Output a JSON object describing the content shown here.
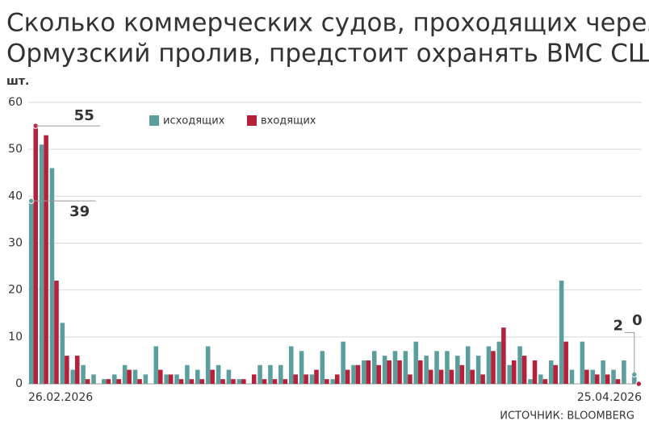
{
  "chart_data": {
    "type": "bar",
    "title": [
      "Сколько коммерческих судов, проходящих через",
      "Ормузский пролив, предстоит охранять ВМС США"
    ],
    "ylabel": "шт.",
    "source": "ИСТОЧНИК: BLOOMBERG",
    "categories": [
      "26.02.2026",
      null,
      null,
      null,
      null,
      null,
      null,
      null,
      null,
      null,
      null,
      null,
      null,
      null,
      null,
      null,
      null,
      null,
      null,
      null,
      null,
      null,
      null,
      null,
      null,
      null,
      null,
      null,
      null,
      null,
      null,
      null,
      null,
      null,
      null,
      null,
      null,
      null,
      null,
      null,
      null,
      null,
      null,
      null,
      null,
      null,
      null,
      null,
      null,
      null,
      null,
      null,
      null,
      null,
      null,
      null,
      null,
      null,
      "25.04.2026"
    ],
    "series": [
      {
        "name": "исходящих",
        "color": "#5b9e9c",
        "values": [
          39,
          51,
          46,
          13,
          3,
          4,
          2,
          1,
          2,
          4,
          3,
          2,
          8,
          2,
          2,
          4,
          3,
          8,
          4,
          3,
          1,
          0,
          4,
          4,
          4,
          8,
          7,
          2,
          7,
          1,
          9,
          4,
          5,
          7,
          6,
          7,
          7,
          9,
          6,
          7,
          7,
          6,
          8,
          6,
          8,
          9,
          4,
          8,
          1,
          2,
          5,
          22,
          3,
          9,
          3,
          5,
          3,
          5,
          2
        ],
        "value_labels": [
          "39",
          null,
          null,
          null,
          null,
          null,
          null,
          null,
          null,
          null,
          null,
          null,
          null,
          null,
          null,
          null,
          null,
          null,
          null,
          null,
          null,
          null,
          null,
          null,
          null,
          null,
          null,
          null,
          null,
          null,
          null,
          null,
          null,
          null,
          null,
          null,
          null,
          null,
          null,
          null,
          null,
          null,
          null,
          null,
          null,
          null,
          null,
          null,
          null,
          null,
          null,
          null,
          null,
          null,
          null,
          null,
          null,
          null,
          "2"
        ]
      },
      {
        "name": "входящих",
        "color": "#b5213a",
        "values": [
          55,
          53,
          22,
          6,
          6,
          1,
          0,
          1,
          1,
          3,
          1,
          0,
          3,
          2,
          1,
          1,
          1,
          3,
          1,
          1,
          1,
          2,
          1,
          1,
          1,
          2,
          2,
          3,
          1,
          2,
          3,
          4,
          5,
          4,
          5,
          5,
          2,
          5,
          3,
          3,
          3,
          4,
          3,
          2,
          7,
          12,
          5,
          6,
          5,
          1,
          4,
          9,
          0,
          3,
          2,
          2,
          1,
          0,
          0
        ],
        "value_labels": [
          "55",
          null,
          null,
          null,
          null,
          null,
          null,
          null,
          null,
          null,
          null,
          null,
          null,
          null,
          null,
          null,
          null,
          null,
          null,
          null,
          null,
          null,
          null,
          null,
          null,
          null,
          null,
          null,
          null,
          null,
          null,
          null,
          null,
          null,
          null,
          null,
          null,
          null,
          null,
          null,
          null,
          null,
          null,
          null,
          null,
          null,
          null,
          null,
          null,
          null,
          null,
          null,
          null,
          null,
          null,
          null,
          null,
          null,
          "0"
        ]
      }
    ],
    "ylim": [
      0,
      60
    ],
    "yticks": [
      0,
      10,
      20,
      30,
      40,
      50,
      60
    ],
    "grid": true
  }
}
